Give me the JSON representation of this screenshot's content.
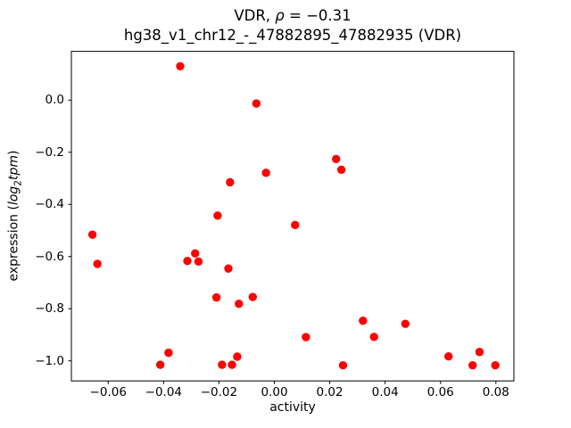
{
  "figure": {
    "title_parts": {
      "pre": "VDR, ",
      "rho": "ρ",
      "rest": " = −0.31"
    }
  },
  "chart_data": {
    "type": "scatter",
    "title": "VDR, ρ = −0.31",
    "subtitle": "hg38_v1_chr12_-_47882895_47882935 (VDR)",
    "xlabel": "activity",
    "ylabel": "expression (log₂tpm)",
    "ylabel_parts": {
      "pre": "expression (",
      "func": "log",
      "sub": "2",
      "var": "tpm",
      "post": ")"
    },
    "marker_color": "#ff0000",
    "axis_color": "#000000",
    "grid": false,
    "legend": "none",
    "xlim": [
      -0.0733,
      0.0865
    ],
    "ylim": [
      -1.077,
      0.187
    ],
    "xtick_values": [
      -0.06,
      -0.04,
      -0.02,
      0.0,
      0.02,
      0.04,
      0.06,
      0.08
    ],
    "xtick_labels": [
      "−0.06",
      "−0.04",
      "−0.02",
      "0.00",
      "0.02",
      "0.04",
      "0.06",
      "0.08"
    ],
    "ytick_values": [
      0.0,
      -0.2,
      -0.4,
      -0.6,
      -0.8,
      -1.0
    ],
    "ytick_labels": [
      "0.0",
      "−0.2",
      "−0.4",
      "−0.6",
      "−0.8",
      "−1.0"
    ],
    "points": [
      [
        -0.034,
        0.13
      ],
      [
        -0.0065,
        -0.013
      ],
      [
        -0.003,
        -0.279
      ],
      [
        -0.016,
        -0.315
      ],
      [
        -0.0205,
        -0.443
      ],
      [
        0.0223,
        -0.226
      ],
      [
        0.0242,
        -0.267
      ],
      [
        -0.0657,
        -0.516
      ],
      [
        -0.0639,
        -0.628
      ],
      [
        0.0075,
        -0.479
      ],
      [
        -0.0286,
        -0.588
      ],
      [
        -0.0314,
        -0.617
      ],
      [
        -0.0274,
        -0.619
      ],
      [
        -0.0166,
        -0.646
      ],
      [
        -0.0209,
        -0.757
      ],
      [
        -0.0128,
        -0.781
      ],
      [
        -0.0078,
        -0.755
      ],
      [
        -0.0382,
        -0.969
      ],
      [
        -0.0412,
        -1.015
      ],
      [
        -0.0189,
        -1.015
      ],
      [
        -0.0153,
        -1.015
      ],
      [
        -0.0134,
        -0.984
      ],
      [
        0.0114,
        -0.909
      ],
      [
        0.032,
        -0.846
      ],
      [
        0.036,
        -0.908
      ],
      [
        0.0473,
        -0.858
      ],
      [
        0.0248,
        -1.017
      ],
      [
        0.0629,
        -0.983
      ],
      [
        0.0716,
        -1.017
      ],
      [
        0.0741,
        -0.966
      ],
      [
        0.0798,
        -1.017
      ]
    ]
  }
}
